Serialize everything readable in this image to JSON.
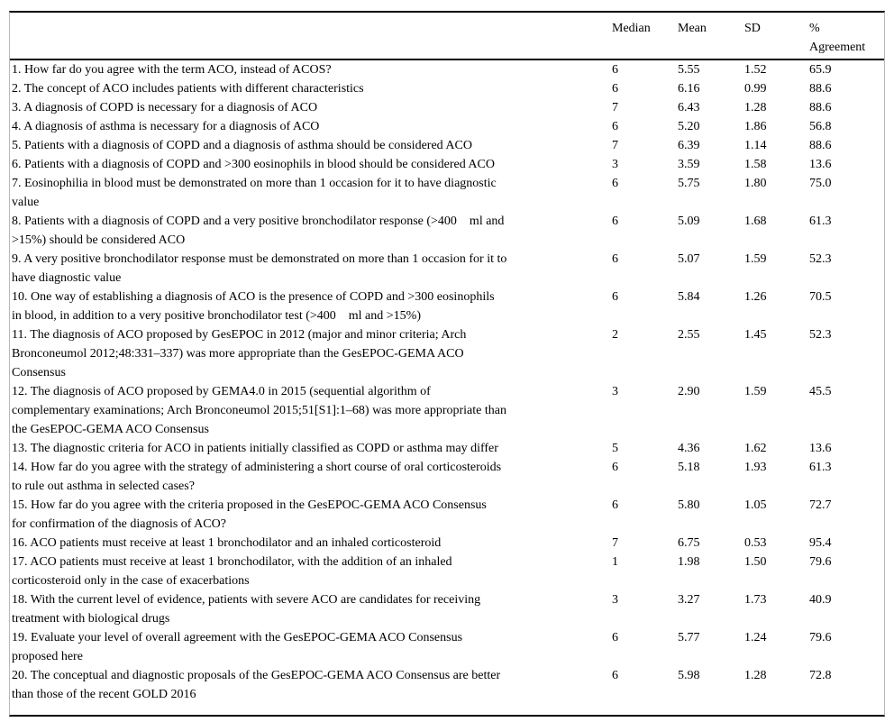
{
  "table": {
    "columns": [
      "",
      "Median",
      "Mean",
      "SD",
      "%\nAgreement"
    ],
    "rows": [
      {
        "statement": "1. How far do you agree with the term ACO, instead of ACOS?",
        "median": "6",
        "mean": "5.55",
        "sd": "1.52",
        "agreement": "65.9"
      },
      {
        "statement": "2. The concept of ACO includes patients with different characteristics",
        "median": "6",
        "mean": "6.16",
        "sd": "0.99",
        "agreement": "88.6"
      },
      {
        "statement": "3. A diagnosis of COPD is necessary for a diagnosis of ACO",
        "median": "7",
        "mean": "6.43",
        "sd": "1.28",
        "agreement": "88.6"
      },
      {
        "statement": "4. A diagnosis of asthma is necessary for a diagnosis of ACO",
        "median": "6",
        "mean": "5.20",
        "sd": "1.86",
        "agreement": "56.8"
      },
      {
        "statement": "5. Patients with a diagnosis of COPD and a diagnosis of asthma should be considered ACO",
        "median": "7",
        "mean": "6.39",
        "sd": "1.14",
        "agreement": "88.6"
      },
      {
        "statement": "6. Patients with a diagnosis of COPD and >300 eosinophils in blood should be considered ACO",
        "median": "3",
        "mean": "3.59",
        "sd": "1.58",
        "agreement": "13.6"
      },
      {
        "statement": "7. Eosinophilia in blood must be demonstrated on more than 1 occasion for it to have diagnostic\nvalue",
        "median": "6",
        "mean": "5.75",
        "sd": "1.80",
        "agreement": "75.0"
      },
      {
        "statement": "8. Patients with a diagnosis of COPD and a very positive bronchodilator response (>400    ml and\n>15%) should be considered ACO",
        "median": "6",
        "mean": "5.09",
        "sd": "1.68",
        "agreement": "61.3"
      },
      {
        "statement": "9. A very positive bronchodilator response must be demonstrated on more than 1 occasion for it to\nhave diagnostic value",
        "median": "6",
        "mean": "5.07",
        "sd": "1.59",
        "agreement": "52.3"
      },
      {
        "statement": "10. One way of establishing a diagnosis of ACO is the presence of COPD and >300 eosinophils\nin blood, in addition to a very positive bronchodilator test (>400    ml and >15%)",
        "median": "6",
        "mean": "5.84",
        "sd": "1.26",
        "agreement": "70.5"
      },
      {
        "statement": "11. The diagnosis of ACO proposed by GesEPOC in 2012 (major and minor criteria; Arch\nBronconeumol 2012;48:331–337) was more appropriate than the GesEPOC-GEMA ACO\nConsensus",
        "median": "2",
        "mean": "2.55",
        "sd": "1.45",
        "agreement": "52.3"
      },
      {
        "statement": "12. The diagnosis of ACO proposed by GEMA4.0 in 2015 (sequential algorithm of\ncomplementary examinations; Arch Bronconeumol 2015;51[S1]:1–68) was more appropriate than\nthe GesEPOC-GEMA ACO Consensus",
        "median": "3",
        "mean": "2.90",
        "sd": "1.59",
        "agreement": "45.5"
      },
      {
        "statement": "13. The diagnostic criteria for ACO in patients initially classified as COPD or asthma may differ",
        "median": "5",
        "mean": "4.36",
        "sd": "1.62",
        "agreement": "13.6"
      },
      {
        "statement": "14. How far do you agree with the strategy of administering a short course of oral corticosteroids\nto rule out asthma in selected cases?",
        "median": "6",
        "mean": "5.18",
        "sd": "1.93",
        "agreement": "61.3"
      },
      {
        "statement": "15. How far do you agree with the criteria proposed in the GesEPOC-GEMA ACO Consensus\nfor confirmation of the diagnosis of ACO?",
        "median": "6",
        "mean": "5.80",
        "sd": "1.05",
        "agreement": "72.7"
      },
      {
        "statement": "16. ACO patients must receive at least 1 bronchodilator and an inhaled corticosteroid",
        "median": "7",
        "mean": "6.75",
        "sd": "0.53",
        "agreement": "95.4"
      },
      {
        "statement": "17. ACO patients must receive at least 1 bronchodilator, with the addition of an inhaled\ncorticosteroid only in the case of exacerbations",
        "median": "1",
        "mean": "1.98",
        "sd": "1.50",
        "agreement": "79.6"
      },
      {
        "statement": "18. With the current level of evidence, patients with severe ACO are candidates for receiving\ntreatment with biological drugs",
        "median": "3",
        "mean": "3.27",
        "sd": "1.73",
        "agreement": "40.9"
      },
      {
        "statement": "19. Evaluate your level of overall agreement with the GesEPOC-GEMA ACO Consensus\nproposed here",
        "median": "6",
        "mean": "5.77",
        "sd": "1.24",
        "agreement": "79.6"
      },
      {
        "statement": "20. The conceptual and diagnostic proposals of the GesEPOC-GEMA ACO Consensus are better\nthan those of the recent GOLD 2016",
        "median": "6",
        "mean": "5.98",
        "sd": "1.28",
        "agreement": "72.8"
      }
    ]
  }
}
